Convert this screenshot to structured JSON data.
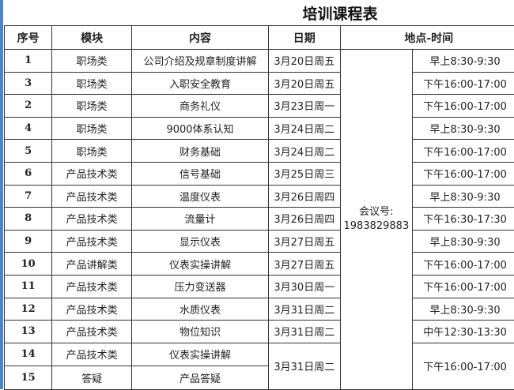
{
  "title": "培训课程表",
  "headers": [
    "序号",
    "模块",
    "内容",
    "日期",
    "地点-时间"
  ],
  "location": {
    "label": "会议号:",
    "number": "1983829883"
  },
  "rows": [
    {
      "seq": "1",
      "module": "职场类",
      "content": "公司介绍及规章制度讲解",
      "date": "3月20日周五",
      "time": "早上8:30-9:30"
    },
    {
      "seq": "3",
      "module": "职场类",
      "content": "入职安全教育",
      "date": "3月20日周五",
      "time": "下午16:00-17:00"
    },
    {
      "seq": "2",
      "module": "职场类",
      "content": "商务礼仪",
      "date": "3月23日周一",
      "time": "下午16:00-17:00"
    },
    {
      "seq": "4",
      "module": "职场类",
      "content": "9000体系认知",
      "date": "3月24日周二",
      "time": "早上8:30-9:30"
    },
    {
      "seq": "5",
      "module": "职场类",
      "content": "财务基础",
      "date": "3月24日周二",
      "time": "下午16:00-17:00"
    },
    {
      "seq": "6",
      "module": "产品技术类",
      "content": "信号基础",
      "date": "3月25日周三",
      "time": "下午16:00-17:00"
    },
    {
      "seq": "7",
      "module": "产品技术类",
      "content": "温度仪表",
      "date": "3月26日周四",
      "time": "早上8:30-9:30"
    },
    {
      "seq": "8",
      "module": "产品技术类",
      "content": "流量计",
      "date": "3月26日周四",
      "time": "下午16:30-17:30"
    },
    {
      "seq": "9",
      "module": "产品技术类",
      "content": "显示仪表",
      "date": "3月27日周五",
      "time": "早上8:30-9:30"
    },
    {
      "seq": "10",
      "module": "产品讲解类",
      "content": "仪表实操讲解",
      "date": "3月27日周五",
      "time": "下午16:00-17:00"
    },
    {
      "seq": "11",
      "module": "产品技术类",
      "content": "压力变送器",
      "date": "3月30日周一",
      "time": "下午16:00-17:00"
    },
    {
      "seq": "12",
      "module": "产品技术类",
      "content": "水质仪表",
      "date": "3月31日周二",
      "time": "早上8:30-9:30"
    },
    {
      "seq": "13",
      "module": "产品技术类",
      "content": "物位知识",
      "date": "3月31日周二",
      "time": "中午12:30-13:30"
    },
    {
      "seq": "14",
      "module": "产品技术类",
      "content": "仪表实操讲解",
      "date": "3月31日周二",
      "time": "下午16:00-17:00"
    },
    {
      "seq": "15",
      "module": "答疑",
      "content": "产品答疑"
    }
  ]
}
